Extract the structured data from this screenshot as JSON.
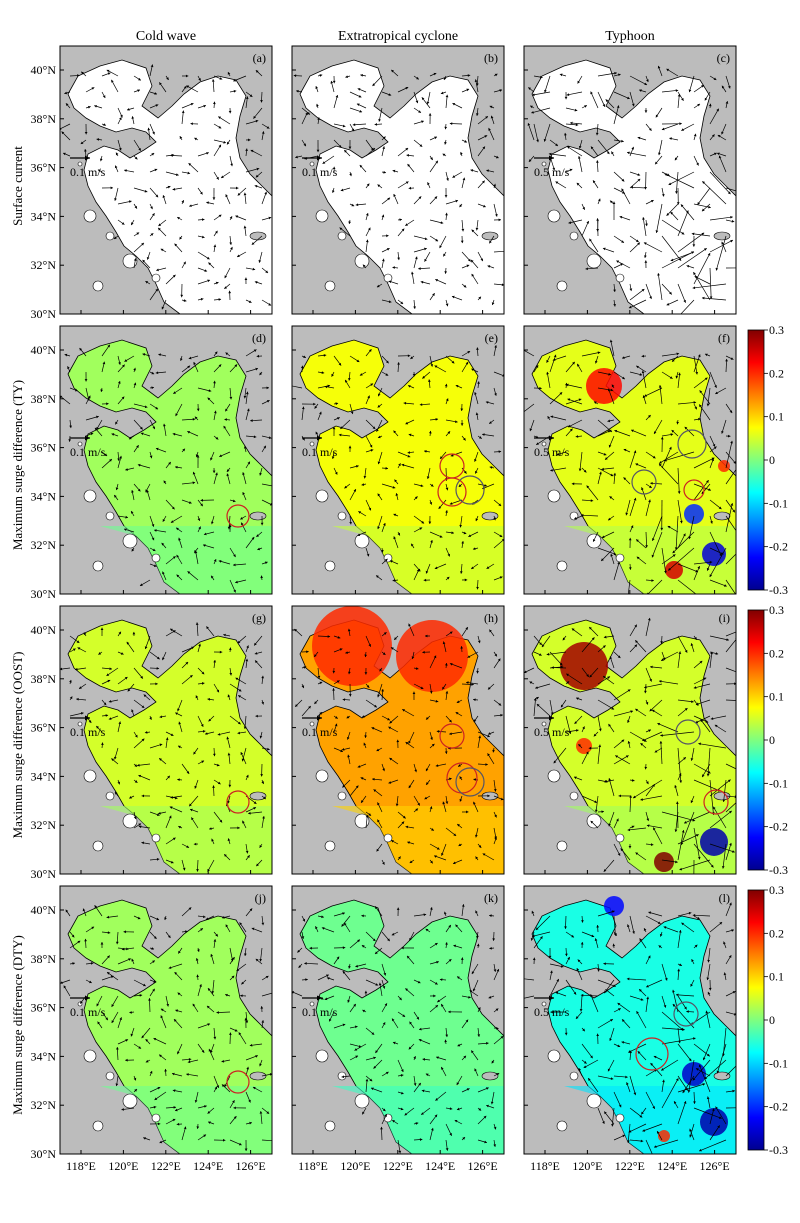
{
  "chart_data": {
    "type": "map",
    "column_titles": [
      "Cold wave",
      "Extratropical cyclone",
      "Typhoon"
    ],
    "row_labels": [
      "Surface current",
      "Maximum surge difference (TY)",
      "Maximum surge difference (OOST)",
      "Maximum surge difference (DTY)"
    ],
    "panel_labels": [
      "(a)",
      "(b)",
      "(c)",
      "(d)",
      "(e)",
      "(f)",
      "(g)",
      "(h)",
      "(i)",
      "(j)",
      "(k)",
      "(l)"
    ],
    "y_ticks": [
      "40°N",
      "38°N",
      "36°N",
      "34°N",
      "32°N",
      "30°N"
    ],
    "x_ticks": [
      "118°E",
      "120°E",
      "122°E",
      "124°E",
      "126°E"
    ],
    "lat_range": [
      30,
      41
    ],
    "lon_range": [
      117,
      127
    ],
    "scale_labels": {
      "cold_wave": "0.1 m/s",
      "extratropical_cyclone": "0.1 m/s",
      "typhoon": "0.5 m/s"
    },
    "colorbar": {
      "range": [
        -0.3,
        0.3
      ],
      "ticks": [
        "0.3",
        "0.2",
        "0.1",
        "0",
        "-0.1",
        "-0.2",
        "-0.3"
      ],
      "colormap": "jet"
    },
    "panel_fill_levels": {
      "d": 0.02,
      "e": 0.07,
      "f": 0.06,
      "g": 0.05,
      "h": 0.13,
      "i": 0.05,
      "j": 0.02,
      "k": -0.01,
      "l": -0.06
    },
    "colors": {
      "land": "#bcbcbc",
      "sea_row1": "#ffffff",
      "circle_red": "#cc2222",
      "circle_gray": "#555566"
    }
  }
}
